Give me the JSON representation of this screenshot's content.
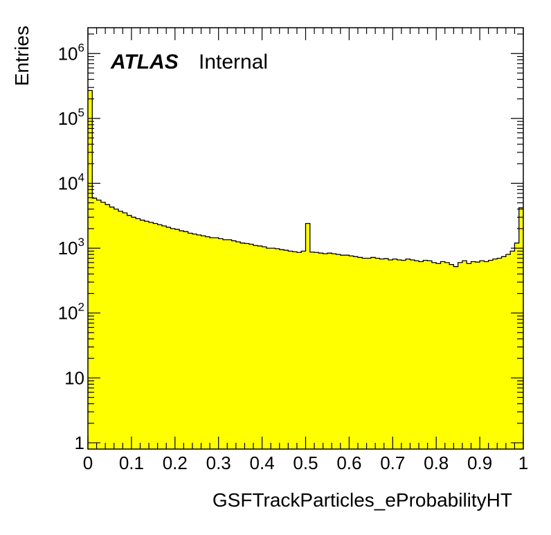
{
  "chart_data": {
    "type": "area",
    "title": "",
    "xlabel": "GSFTrackParticles_eProbabilityHT",
    "ylabel": "Entries",
    "label": {
      "experiment": "ATLAS",
      "status": "Internal"
    },
    "log_y": true,
    "xlim": [
      0,
      1
    ],
    "ylim": [
      0.8,
      2500000
    ],
    "grid": false,
    "fill_color": "#ffff00",
    "line_color": "#000000",
    "x_ticks": [
      "0",
      "0.1",
      "0.2",
      "0.3",
      "0.4",
      "0.5",
      "0.6",
      "0.7",
      "0.8",
      "0.9",
      "1"
    ],
    "y_ticks": [
      {
        "base": "1",
        "exp": ""
      },
      {
        "base": "10",
        "exp": ""
      },
      {
        "base": "10",
        "exp": "2"
      },
      {
        "base": "10",
        "exp": "3"
      },
      {
        "base": "10",
        "exp": "4"
      },
      {
        "base": "10",
        "exp": "5"
      },
      {
        "base": "10",
        "exp": "6"
      }
    ],
    "bins": 100,
    "bin_width": 0.01,
    "series": [
      {
        "values": [
          270000,
          5900,
          5500,
          5100,
          4700,
          4300,
          4000,
          3700,
          3500,
          3200,
          3000,
          2850,
          2700,
          2600,
          2500,
          2400,
          2300,
          2200,
          2100,
          2000,
          1950,
          1850,
          1800,
          1700,
          1650,
          1600,
          1550,
          1500,
          1450,
          1450,
          1400,
          1350,
          1350,
          1300,
          1250,
          1200,
          1180,
          1150,
          1100,
          1080,
          1050,
          1000,
          1000,
          980,
          950,
          930,
          900,
          880,
          860,
          900,
          2400,
          870,
          860,
          840,
          820,
          840,
          820,
          800,
          780,
          780,
          760,
          740,
          720,
          700,
          700,
          720,
          700,
          680,
          690,
          660,
          680,
          660,
          650,
          680,
          660,
          640,
          620,
          650,
          640,
          600,
          580,
          620,
          600,
          560,
          520,
          600,
          640,
          580,
          620,
          610,
          640,
          620,
          650,
          680,
          700,
          740,
          800,
          900,
          1200,
          4200
        ]
      }
    ]
  }
}
